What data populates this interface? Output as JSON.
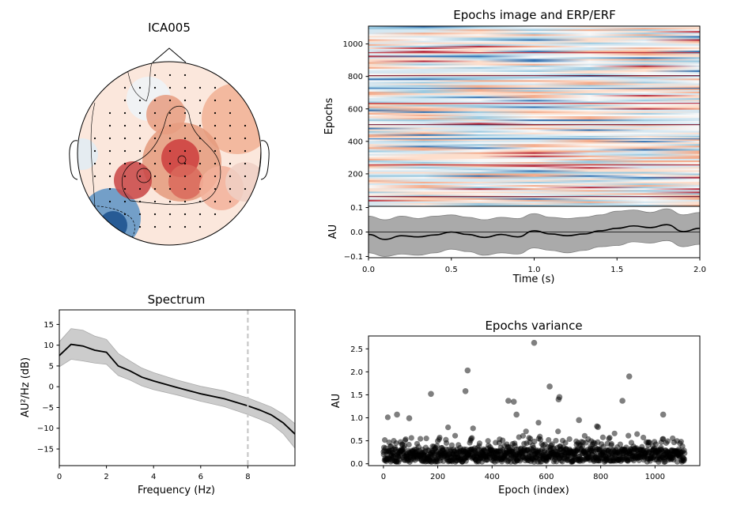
{
  "topomap": {
    "title": "ICA005"
  },
  "chart_data": [
    {
      "type": "heatmap",
      "title": "Epochs image and ERP/ERF",
      "ylabel": "Epochs",
      "ylim": [
        0,
        1110
      ],
      "y_ticks": [
        "200",
        "400",
        "600",
        "800",
        "1000"
      ],
      "colormap": "RdBu_r"
    },
    {
      "type": "line",
      "title": "",
      "xlabel": "Time (s)",
      "ylabel": "AU",
      "xlim": [
        0.0,
        2.0
      ],
      "ylim": [
        -0.105,
        0.105
      ],
      "x_ticks": [
        "0.0",
        "0.5",
        "1.0",
        "1.5",
        "2.0"
      ],
      "y_ticks": [
        "-0.1",
        "0.0",
        "0.1"
      ],
      "x": [
        0.0,
        0.1,
        0.2,
        0.3,
        0.4,
        0.5,
        0.6,
        0.7,
        0.8,
        0.9,
        1.0,
        1.1,
        1.2,
        1.3,
        1.4,
        1.5,
        1.6,
        1.7,
        1.8,
        1.9,
        2.0
      ],
      "mean": [
        -0.01,
        -0.03,
        -0.015,
        -0.02,
        -0.012,
        0.0,
        -0.01,
        -0.022,
        -0.01,
        -0.02,
        0.005,
        -0.008,
        -0.015,
        -0.008,
        0.005,
        0.015,
        0.025,
        0.018,
        0.03,
        0.002,
        0.015
      ],
      "band_upper": [
        0.065,
        0.05,
        0.065,
        0.055,
        0.065,
        0.07,
        0.06,
        0.05,
        0.06,
        0.055,
        0.075,
        0.06,
        0.055,
        0.06,
        0.07,
        0.085,
        0.09,
        0.08,
        0.095,
        0.07,
        0.08
      ],
      "band_lower": [
        -0.085,
        -0.1,
        -0.09,
        -0.095,
        -0.085,
        -0.07,
        -0.08,
        -0.095,
        -0.085,
        -0.09,
        -0.065,
        -0.075,
        -0.085,
        -0.075,
        -0.06,
        -0.055,
        -0.04,
        -0.045,
        -0.035,
        -0.06,
        -0.05
      ],
      "colors": {
        "line": "#000000",
        "band": "#aaaaaa"
      }
    },
    {
      "type": "line",
      "title": "Spectrum",
      "xlabel": "Frequency (Hz)",
      "ylabel": "AU²/Hz (dB)",
      "xlim": [
        0,
        10
      ],
      "ylim": [
        -19,
        18.5
      ],
      "x_ticks": [
        "0",
        "2",
        "4",
        "6",
        "8"
      ],
      "y_ticks": [
        "−15",
        "−10",
        "−5",
        "0",
        "5",
        "10",
        "15"
      ],
      "x": [
        0,
        0.5,
        1.0,
        1.5,
        2.0,
        2.5,
        3.0,
        3.5,
        4.0,
        5.0,
        6.0,
        7.0,
        8.0,
        8.5,
        9.0,
        9.5,
        10.0
      ],
      "values": [
        7.5,
        10.2,
        9.8,
        8.8,
        8.3,
        5.0,
        3.8,
        2.3,
        1.4,
        -0.2,
        -1.7,
        -2.9,
        -4.6,
        -5.6,
        -6.8,
        -8.7,
        -11.4
      ],
      "band_upper": [
        10.8,
        14.0,
        13.6,
        12.2,
        11.4,
        8.0,
        6.2,
        4.5,
        3.4,
        1.6,
        0.1,
        -1.0,
        -2.7,
        -3.8,
        -4.9,
        -6.6,
        -8.9
      ],
      "band_lower": [
        4.8,
        6.6,
        6.2,
        5.7,
        5.4,
        2.7,
        1.6,
        0.2,
        -0.7,
        -2.0,
        -3.5,
        -4.8,
        -6.7,
        -7.8,
        -9.0,
        -11.3,
        -14.8
      ],
      "vline_x": 8,
      "colors": {
        "line": "#000000",
        "band": "#cccccc",
        "vline": "#c8c8c8"
      }
    },
    {
      "type": "scatter",
      "title": "Epochs variance",
      "xlabel": "Epoch (index)",
      "ylabel": "AU",
      "xlim": [
        -55,
        1165
      ],
      "ylim": [
        -0.04,
        2.78
      ],
      "x_ticks": [
        "0",
        "200",
        "400",
        "600",
        "800",
        "1000"
      ],
      "y_ticks": [
        "0.0",
        "0.5",
        "1.0",
        "1.5",
        "2.0",
        "2.5"
      ],
      "n_points": 1110,
      "highlights": {
        "x": [
          555,
          310,
          905,
          612,
          175,
          302,
          648,
          645,
          880,
          460,
          480,
          1030,
          490,
          50,
          95,
          720,
          790
        ],
        "y": [
          2.63,
          2.03,
          1.9,
          1.68,
          1.52,
          1.58,
          1.45,
          1.4,
          1.37,
          1.37,
          1.35,
          1.07,
          1.07,
          1.07,
          0.99,
          0.95,
          0.8
        ]
      },
      "colors": {
        "marker": "#000000"
      }
    }
  ]
}
